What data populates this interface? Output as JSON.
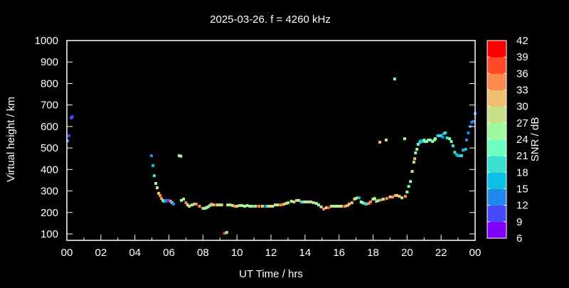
{
  "chart_data": {
    "type": "scatter",
    "title": "2025-03-26. f = 4260 kHz",
    "xlabel": "UT Time / hrs",
    "ylabel": "Virtual height / km",
    "xlim": [
      0,
      24
    ],
    "ylim": [
      80,
      1000
    ],
    "xticks": [
      "00",
      "02",
      "04",
      "06",
      "08",
      "10",
      "12",
      "14",
      "16",
      "18",
      "20",
      "22",
      "00"
    ],
    "yticks": [
      100,
      200,
      300,
      400,
      500,
      600,
      700,
      800,
      900,
      1000
    ],
    "colorbar": {
      "label": "SNR / dB",
      "range": [
        6,
        42
      ],
      "ticks": [
        6,
        9,
        12,
        15,
        18,
        21,
        24,
        27,
        30,
        33,
        36,
        39,
        42
      ],
      "colors": [
        "#8000ff",
        "#4848f8",
        "#2288ee",
        "#0cc0e6",
        "#3ae0d0",
        "#6effc0",
        "#a0f8a0",
        "#c8e08a",
        "#f0c070",
        "#fe8a4c",
        "#ff4a26",
        "#ff0000"
      ]
    },
    "grid": false,
    "points": [
      [
        0.05,
        533,
        14
      ],
      [
        0.12,
        557,
        11
      ],
      [
        0.25,
        640,
        11
      ],
      [
        0.32,
        645,
        11
      ],
      [
        4.97,
        464,
        13
      ],
      [
        5.06,
        418,
        16
      ],
      [
        5.14,
        371,
        20
      ],
      [
        5.23,
        335,
        24
      ],
      [
        5.31,
        315,
        28
      ],
      [
        5.4,
        289,
        31
      ],
      [
        5.48,
        279,
        34
      ],
      [
        5.56,
        265,
        33
      ],
      [
        5.65,
        256,
        21
      ],
      [
        5.73,
        252,
        23
      ],
      [
        5.8,
        252,
        13
      ],
      [
        5.85,
        256,
        12
      ],
      [
        5.95,
        256,
        11
      ],
      [
        6.02,
        256,
        11
      ],
      [
        6.1,
        252,
        34
      ],
      [
        6.19,
        245,
        20
      ],
      [
        6.27,
        239,
        13
      ],
      [
        6.6,
        464,
        27
      ],
      [
        6.7,
        462,
        26
      ],
      [
        6.73,
        256,
        24
      ],
      [
        6.86,
        262,
        25
      ],
      [
        7.0,
        245,
        34
      ],
      [
        7.1,
        235,
        29
      ],
      [
        7.2,
        229,
        27
      ],
      [
        7.36,
        235,
        27
      ],
      [
        7.5,
        239,
        24
      ],
      [
        7.6,
        239,
        34
      ],
      [
        7.8,
        229,
        33
      ],
      [
        8.0,
        219,
        31
      ],
      [
        8.1,
        219,
        22
      ],
      [
        8.2,
        222,
        29
      ],
      [
        8.3,
        226,
        24
      ],
      [
        8.4,
        232,
        21
      ],
      [
        8.5,
        238,
        31
      ],
      [
        8.6,
        235,
        28
      ],
      [
        8.75,
        235,
        38
      ],
      [
        8.85,
        235,
        29
      ],
      [
        9.0,
        235,
        29
      ],
      [
        9.1,
        235,
        27
      ],
      [
        9.28,
        103,
        38
      ],
      [
        9.4,
        107,
        22
      ],
      [
        9.45,
        235,
        27
      ],
      [
        9.6,
        235,
        27
      ],
      [
        9.75,
        232,
        25
      ],
      [
        9.87,
        229,
        33
      ],
      [
        10.0,
        229,
        28
      ],
      [
        10.15,
        232,
        27
      ],
      [
        10.3,
        232,
        24
      ],
      [
        10.45,
        229,
        24
      ],
      [
        10.6,
        232,
        24
      ],
      [
        10.75,
        229,
        27
      ],
      [
        10.9,
        229,
        27
      ],
      [
        11.0,
        229,
        18
      ],
      [
        11.1,
        229,
        28
      ],
      [
        11.3,
        229,
        34
      ],
      [
        11.5,
        229,
        27
      ],
      [
        11.7,
        229,
        16
      ],
      [
        11.85,
        229,
        27
      ],
      [
        11.96,
        229,
        27
      ],
      [
        12.1,
        229,
        28
      ],
      [
        12.25,
        235,
        27
      ],
      [
        12.4,
        235,
        29
      ],
      [
        12.58,
        235,
        34
      ],
      [
        12.75,
        238,
        30
      ],
      [
        12.9,
        242,
        29
      ],
      [
        13.0,
        245,
        27
      ],
      [
        13.2,
        252,
        24
      ],
      [
        13.35,
        249,
        28
      ],
      [
        13.5,
        256,
        31
      ],
      [
        13.63,
        256,
        24
      ],
      [
        13.8,
        249,
        20
      ],
      [
        13.95,
        249,
        27
      ],
      [
        14.05,
        249,
        24
      ],
      [
        14.2,
        249,
        27
      ],
      [
        14.35,
        249,
        27
      ],
      [
        14.5,
        245,
        27
      ],
      [
        14.67,
        242,
        24
      ],
      [
        14.8,
        235,
        24
      ],
      [
        14.95,
        226,
        27
      ],
      [
        15.1,
        216,
        33
      ],
      [
        15.25,
        222,
        27
      ],
      [
        15.4,
        222,
        38
      ],
      [
        15.55,
        229,
        27
      ],
      [
        15.7,
        229,
        27
      ],
      [
        15.85,
        229,
        25
      ],
      [
        16.0,
        229,
        27
      ],
      [
        16.15,
        229,
        27
      ],
      [
        16.35,
        229,
        33
      ],
      [
        16.5,
        232,
        31
      ],
      [
        16.6,
        239,
        32
      ],
      [
        16.76,
        245,
        31
      ],
      [
        16.9,
        262,
        34
      ],
      [
        16.97,
        265,
        26
      ],
      [
        17.1,
        268,
        27
      ],
      [
        17.18,
        268,
        16
      ],
      [
        17.3,
        249,
        24
      ],
      [
        17.4,
        245,
        25
      ],
      [
        17.5,
        242,
        19
      ],
      [
        17.6,
        239,
        18
      ],
      [
        17.75,
        242,
        34
      ],
      [
        17.85,
        249,
        34
      ],
      [
        18.0,
        262,
        25
      ],
      [
        18.1,
        265,
        25
      ],
      [
        18.2,
        252,
        31
      ],
      [
        18.3,
        255,
        22
      ],
      [
        18.45,
        258,
        34
      ],
      [
        18.6,
        262,
        25
      ],
      [
        18.8,
        265,
        33
      ],
      [
        19.0,
        272,
        31
      ],
      [
        19.15,
        272,
        34
      ],
      [
        19.3,
        279,
        34
      ],
      [
        19.4,
        279,
        29
      ],
      [
        19.55,
        275,
        31
      ],
      [
        19.7,
        268,
        28
      ],
      [
        19.9,
        275,
        34
      ],
      [
        20.0,
        295,
        25
      ],
      [
        20.1,
        321,
        23
      ],
      [
        20.2,
        344,
        25
      ],
      [
        20.3,
        391,
        28
      ],
      [
        20.4,
        434,
        28
      ],
      [
        20.45,
        450,
        31
      ],
      [
        20.5,
        477,
        25
      ],
      [
        20.58,
        494,
        24
      ],
      [
        20.65,
        517,
        21
      ],
      [
        20.75,
        527,
        19
      ],
      [
        20.8,
        533,
        16
      ],
      [
        20.9,
        530,
        16
      ],
      [
        21.0,
        537,
        24
      ],
      [
        21.07,
        530,
        21
      ],
      [
        21.15,
        530,
        24
      ],
      [
        21.25,
        537,
        21
      ],
      [
        21.36,
        537,
        24
      ],
      [
        21.5,
        530,
        25
      ],
      [
        21.6,
        537,
        22
      ],
      [
        21.66,
        543,
        24
      ],
      [
        21.8,
        557,
        16
      ],
      [
        21.9,
        557,
        18
      ],
      [
        22.0,
        557,
        18
      ],
      [
        22.1,
        550,
        14
      ],
      [
        22.15,
        567,
        16
      ],
      [
        22.25,
        570,
        19
      ],
      [
        22.35,
        547,
        20
      ],
      [
        22.5,
        543,
        24
      ],
      [
        22.6,
        530,
        21
      ],
      [
        22.7,
        510,
        19
      ],
      [
        22.8,
        480,
        19
      ],
      [
        22.9,
        470,
        17
      ],
      [
        23.0,
        464,
        15
      ],
      [
        23.1,
        464,
        16
      ],
      [
        23.2,
        464,
        18
      ],
      [
        23.3,
        490,
        16
      ],
      [
        23.45,
        494,
        16
      ],
      [
        23.5,
        537,
        14
      ],
      [
        23.6,
        570,
        12
      ],
      [
        23.7,
        600,
        14
      ],
      [
        23.8,
        620,
        14
      ],
      [
        23.9,
        623,
        14
      ],
      [
        24.0,
        660,
        12
      ],
      [
        18.4,
        527,
        31
      ],
      [
        18.77,
        537,
        27
      ],
      [
        19.27,
        821,
        21
      ],
      [
        19.86,
        543,
        25
      ]
    ]
  }
}
